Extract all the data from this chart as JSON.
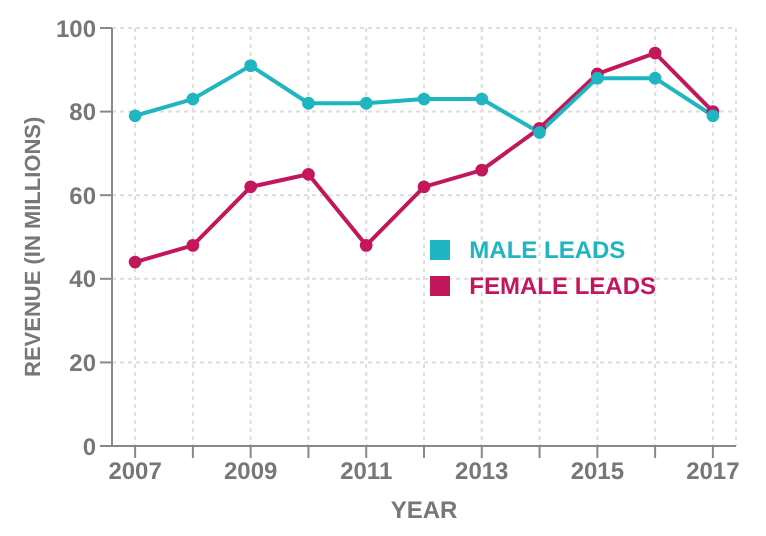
{
  "chart_data": {
    "type": "line",
    "xlabel": "YEAR",
    "ylabel": "REVENUE (IN MILLIONS)",
    "x": [
      2007,
      2008,
      2009,
      2010,
      2011,
      2012,
      2013,
      2014,
      2015,
      2016,
      2017
    ],
    "series": [
      {
        "name": "MALE LEADS",
        "color": "#1fb5c1",
        "values": [
          79,
          83,
          91,
          82,
          82,
          83,
          83,
          75,
          88,
          88,
          79
        ]
      },
      {
        "name": "FEMALE LEADS",
        "color": "#c2185b",
        "values": [
          44,
          48,
          62,
          65,
          48,
          62,
          66,
          76,
          89,
          94,
          80
        ]
      }
    ],
    "xlim": [
      2006.6,
      2017.4
    ],
    "xticks": [
      2007,
      {
        "value": 2008,
        "label": null
      },
      2009,
      {
        "value": 2010,
        "label": null
      },
      2011,
      {
        "value": 2012,
        "label": null
      },
      2013,
      {
        "value": 2014,
        "label": null
      },
      2015,
      {
        "value": 2016,
        "label": null
      },
      2017
    ],
    "ylim": [
      0,
      100
    ],
    "yticks": [
      0,
      20,
      40,
      60,
      80,
      100
    ],
    "grid": true,
    "legend": "right",
    "marker": "circle",
    "line_style": "solid"
  }
}
